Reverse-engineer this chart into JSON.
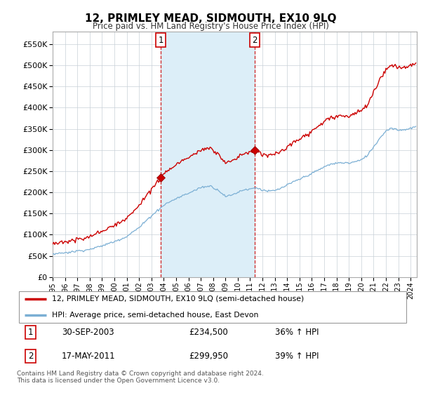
{
  "title": "12, PRIMLEY MEAD, SIDMOUTH, EX10 9LQ",
  "subtitle": "Price paid vs. HM Land Registry's House Price Index (HPI)",
  "legend_line1": "12, PRIMLEY MEAD, SIDMOUTH, EX10 9LQ (semi-detached house)",
  "legend_line2": "HPI: Average price, semi-detached house, East Devon",
  "sale1_date": "30-SEP-2003",
  "sale1_price": "£234,500",
  "sale1_hpi": "36% ↑ HPI",
  "sale2_date": "17-MAY-2011",
  "sale2_price": "£299,950",
  "sale2_hpi": "39% ↑ HPI",
  "footer1": "Contains HM Land Registry data © Crown copyright and database right 2024.",
  "footer2": "This data is licensed under the Open Government Licence v3.0.",
  "hpi_color": "#7bafd4",
  "price_color": "#cc0000",
  "shade_color": "#dceef8",
  "bg_color": "#ffffff",
  "grid_color": "#c8d0d8",
  "sale1_x_year": 2003.75,
  "sale2_x_year": 2011.37,
  "sale1_y": 234500,
  "sale2_y": 299950,
  "ylim": [
    0,
    580000
  ],
  "yticks": [
    0,
    50000,
    100000,
    150000,
    200000,
    250000,
    300000,
    350000,
    400000,
    450000,
    500000,
    550000
  ],
  "xmin": 1995.0,
  "xmax": 2024.5
}
